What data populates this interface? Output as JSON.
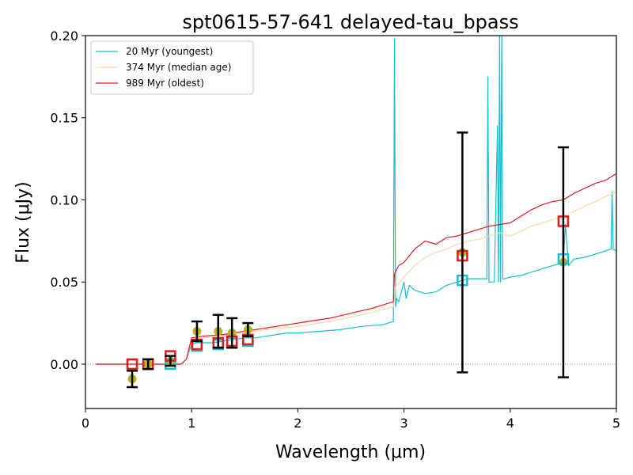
{
  "chart_data": {
    "type": "line",
    "title": "spt0615-57-641  delayed-tau_bpass",
    "xlabel": "Wavelength (μm)",
    "ylabel": "Flux (μJy)",
    "xlim": [
      0,
      5
    ],
    "ylim": [
      -0.027,
      0.2
    ],
    "x_ticks": [
      0,
      1,
      2,
      3,
      4,
      5
    ],
    "x_tick_labels": [
      "0",
      "1",
      "2",
      "3",
      "4",
      "5"
    ],
    "y_ticks": [
      0.0,
      0.05,
      0.1,
      0.15,
      0.2
    ],
    "y_tick_labels": [
      "0.00",
      "0.05",
      "0.10",
      "0.15",
      "0.20"
    ],
    "legend_position": "top-left",
    "zero_line": true,
    "series": [
      {
        "name": " 20 Myr (youngest)",
        "color": "#17becf",
        "x": [
          0.1,
          0.9,
          0.95,
          1.0,
          1.05,
          1.1,
          1.2,
          1.3,
          1.4,
          1.5,
          1.6,
          1.7,
          1.8,
          1.9,
          2.0,
          2.2,
          2.4,
          2.6,
          2.8,
          2.9,
          2.91,
          2.92,
          2.93,
          2.95,
          3.0,
          3.02,
          3.05,
          3.1,
          3.2,
          3.3,
          3.4,
          3.5,
          3.6,
          3.7,
          3.78,
          3.79,
          3.8,
          3.85,
          3.88,
          3.89,
          3.9,
          3.91,
          3.92,
          3.93,
          3.95,
          4.0,
          4.1,
          4.2,
          4.3,
          4.4,
          4.5,
          4.52,
          4.55,
          4.6,
          4.7,
          4.8,
          4.9,
          4.95,
          4.96,
          4.97,
          5.0
        ],
        "y": [
          0.0,
          0.0,
          0.003,
          0.012,
          0.013,
          0.013,
          0.013,
          0.014,
          0.015,
          0.016,
          0.016,
          0.017,
          0.018,
          0.019,
          0.019,
          0.02,
          0.021,
          0.023,
          0.024,
          0.026,
          0.198,
          0.035,
          0.04,
          0.038,
          0.05,
          0.04,
          0.048,
          0.045,
          0.043,
          0.044,
          0.048,
          0.05,
          0.052,
          0.052,
          0.052,
          0.175,
          0.05,
          0.05,
          0.145,
          0.05,
          0.2,
          0.05,
          0.205,
          0.052,
          0.052,
          0.053,
          0.054,
          0.056,
          0.058,
          0.06,
          0.062,
          0.085,
          0.06,
          0.064,
          0.065,
          0.067,
          0.069,
          0.07,
          0.105,
          0.07,
          0.069
        ]
      },
      {
        "name": "374 Myr (median age)",
        "color": "#ffd8a8",
        "x": [
          0.1,
          0.9,
          0.95,
          1.0,
          1.1,
          1.3,
          1.5,
          1.7,
          2.0,
          2.3,
          2.6,
          2.9,
          2.92,
          3.0,
          3.1,
          3.2,
          3.3,
          3.4,
          3.5,
          3.6,
          3.7,
          3.8,
          3.9,
          4.0,
          4.1,
          4.2,
          4.3,
          4.4,
          4.5,
          4.6,
          4.7,
          4.8,
          4.9,
          5.0
        ],
        "y": [
          0.0,
          0.0,
          0.003,
          0.015,
          0.016,
          0.017,
          0.019,
          0.021,
          0.023,
          0.026,
          0.03,
          0.035,
          0.047,
          0.053,
          0.06,
          0.065,
          0.068,
          0.07,
          0.073,
          0.075,
          0.076,
          0.078,
          0.08,
          0.078,
          0.081,
          0.084,
          0.086,
          0.088,
          0.09,
          0.093,
          0.096,
          0.099,
          0.102,
          0.105
        ]
      },
      {
        "name": "989 Myr (oldest)",
        "color": "#e41a1c",
        "x": [
          0.1,
          0.9,
          0.95,
          1.0,
          1.1,
          1.3,
          1.5,
          1.7,
          1.9,
          2.1,
          2.3,
          2.5,
          2.7,
          2.9,
          2.91,
          2.95,
          3.0,
          3.1,
          3.2,
          3.3,
          3.4,
          3.5,
          3.6,
          3.7,
          3.8,
          3.9,
          4.0,
          4.1,
          4.2,
          4.3,
          4.4,
          4.5,
          4.6,
          4.7,
          4.8,
          4.9,
          5.0
        ],
        "y": [
          0.0,
          0.0,
          0.003,
          0.016,
          0.017,
          0.018,
          0.02,
          0.022,
          0.024,
          0.026,
          0.028,
          0.031,
          0.034,
          0.038,
          0.055,
          0.06,
          0.062,
          0.07,
          0.075,
          0.073,
          0.077,
          0.078,
          0.08,
          0.082,
          0.084,
          0.085,
          0.086,
          0.09,
          0.094,
          0.097,
          0.099,
          0.1,
          0.104,
          0.107,
          0.11,
          0.112,
          0.116
        ]
      }
    ],
    "observed": {
      "color": "#b5b51b",
      "x": [
        0.44,
        0.59,
        0.8,
        1.05,
        1.25,
        1.38,
        1.53,
        3.55,
        4.5
      ],
      "y": [
        -0.009,
        0.0,
        0.002,
        0.02,
        0.02,
        0.019,
        0.021,
        0.068,
        0.062
      ],
      "err": [
        0.005,
        0.003,
        0.003,
        0.006,
        0.01,
        0.009,
        0.004,
        0.073,
        0.07
      ]
    },
    "model_photometry": [
      {
        "name": " 20 Myr (youngest)",
        "color": "#17becf",
        "x": [
          0.44,
          0.59,
          0.8,
          1.05,
          1.25,
          1.38,
          1.53,
          3.55,
          4.5
        ],
        "y": [
          0.0,
          0.0,
          0.0,
          0.011,
          0.012,
          0.013,
          0.014,
          0.051,
          0.064
        ]
      },
      {
        "name": "989 Myr (oldest)",
        "color": "#e41a1c",
        "x": [
          0.44,
          0.59,
          0.8,
          1.05,
          1.25,
          1.38,
          1.53,
          3.55,
          4.5
        ],
        "y": [
          0.0,
          0.0,
          0.005,
          0.012,
          0.013,
          0.014,
          0.015,
          0.066,
          0.087
        ]
      }
    ]
  }
}
